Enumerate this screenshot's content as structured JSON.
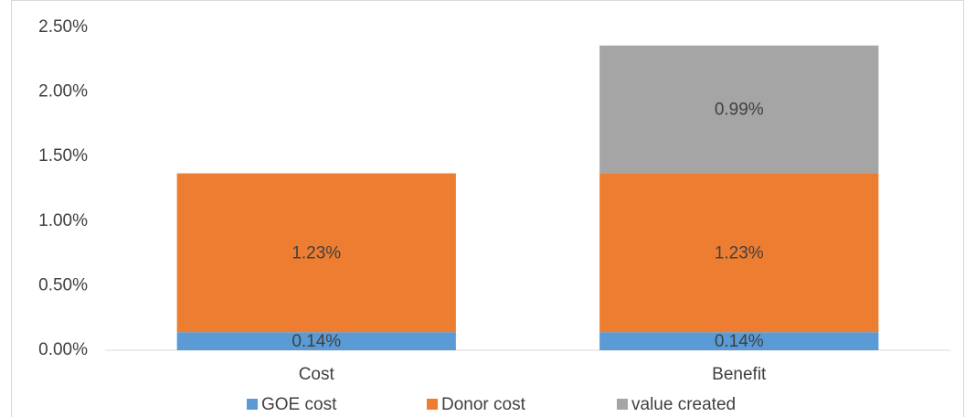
{
  "chart_data": {
    "type": "stacked_bar",
    "categories": [
      "Cost",
      "Benefit"
    ],
    "series": [
      {
        "name": "GOE cost",
        "color": "#5b9bd5",
        "values": [
          0.14,
          0.14
        ],
        "value_labels": [
          "0.14%",
          "0.14%"
        ]
      },
      {
        "name": "Donor cost",
        "color": "#ed7d31",
        "values": [
          1.23,
          1.23
        ],
        "value_labels": [
          "1.23%",
          "1.23%"
        ]
      },
      {
        "name": "value created",
        "color": "#a5a5a5",
        "values": [
          null,
          0.99
        ],
        "value_labels": [
          null,
          "0.99%"
        ]
      }
    ],
    "ylim": [
      0,
      2.5
    ],
    "yticks": [
      {
        "value": 0,
        "label": "0.00%"
      },
      {
        "value": 0.5,
        "label": "0.50%"
      },
      {
        "value": 1,
        "label": "1.00%"
      },
      {
        "value": 1.5,
        "label": "1.50%"
      },
      {
        "value": 2,
        "label": "2.00%"
      },
      {
        "value": 2.5,
        "label": "2.50%"
      }
    ],
    "grid": false,
    "legend": "bottom"
  }
}
